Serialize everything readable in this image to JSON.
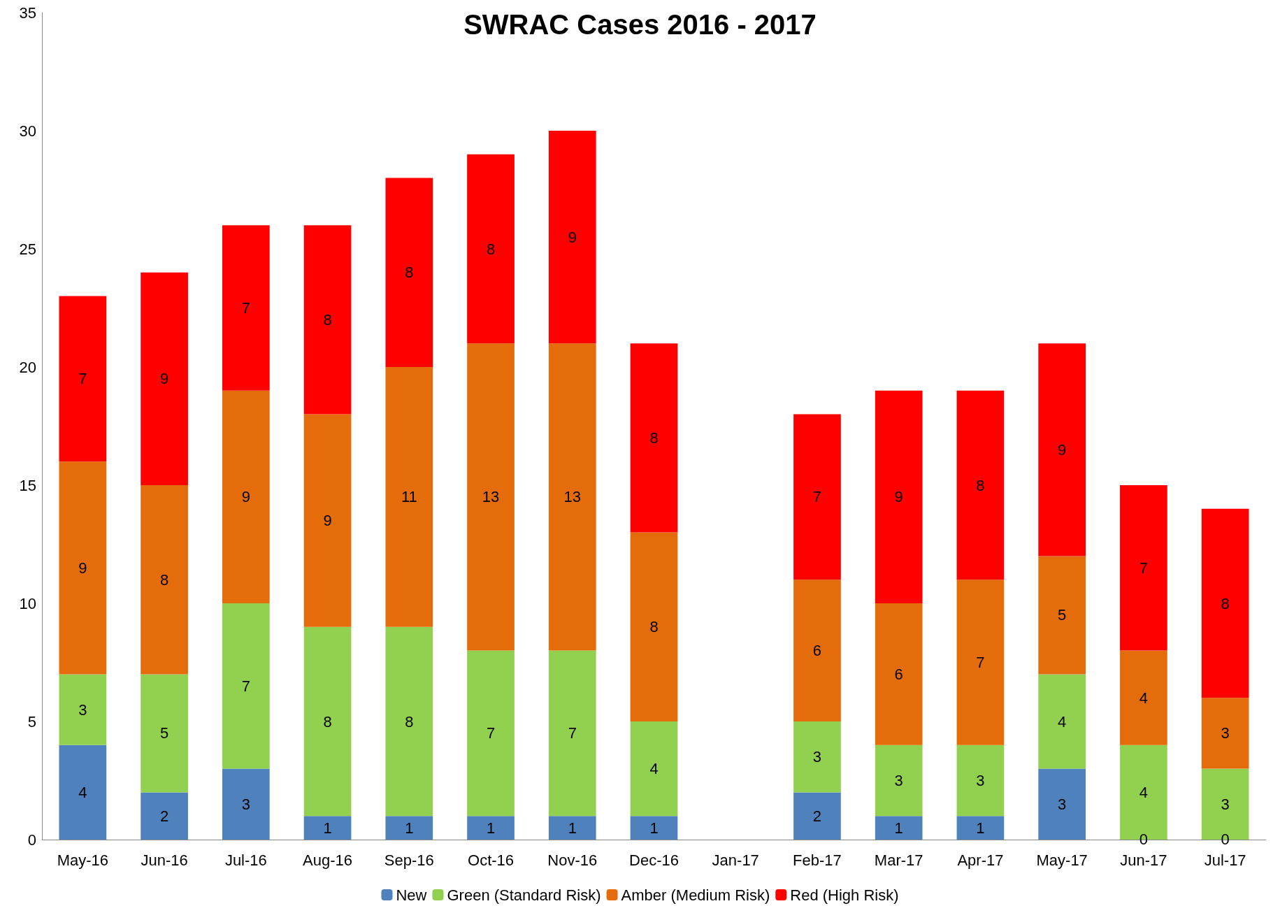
{
  "chart_data": {
    "type": "bar",
    "title": "SWRAC Cases 2016 - 2017",
    "stacked": true,
    "data_labels": true,
    "grid": false,
    "legend": "bottom",
    "categories": [
      "May-16",
      "Jun-16",
      "Jul-16",
      "Aug-16",
      "Sep-16",
      "Oct-16",
      "Nov-16",
      "Dec-16",
      "Jan-17",
      "Feb-17",
      "Mar-17",
      "Apr-17",
      "May-17",
      "Jun-17",
      "Jul-17"
    ],
    "ylim": [
      0,
      35
    ],
    "yticks": [
      0,
      5,
      10,
      15,
      20,
      25,
      30,
      35
    ],
    "series": [
      {
        "name": "New",
        "color": "#4f81bd",
        "values": [
          4,
          2,
          3,
          1,
          1,
          1,
          1,
          1,
          null,
          2,
          1,
          1,
          3,
          0,
          0
        ]
      },
      {
        "name": "Green (Standard Risk)",
        "color": "#92d050",
        "values": [
          3,
          5,
          7,
          8,
          8,
          7,
          7,
          4,
          null,
          3,
          3,
          3,
          4,
          4,
          3
        ]
      },
      {
        "name": "Amber (Medium Risk)",
        "color": "#e46c0a",
        "values": [
          9,
          8,
          9,
          9,
          11,
          13,
          13,
          8,
          null,
          6,
          6,
          7,
          5,
          4,
          3
        ]
      },
      {
        "name": "Red (High Risk)",
        "color": "#ff0000",
        "values": [
          7,
          9,
          7,
          8,
          8,
          8,
          9,
          8,
          null,
          7,
          9,
          8,
          9,
          7,
          8
        ]
      }
    ]
  }
}
